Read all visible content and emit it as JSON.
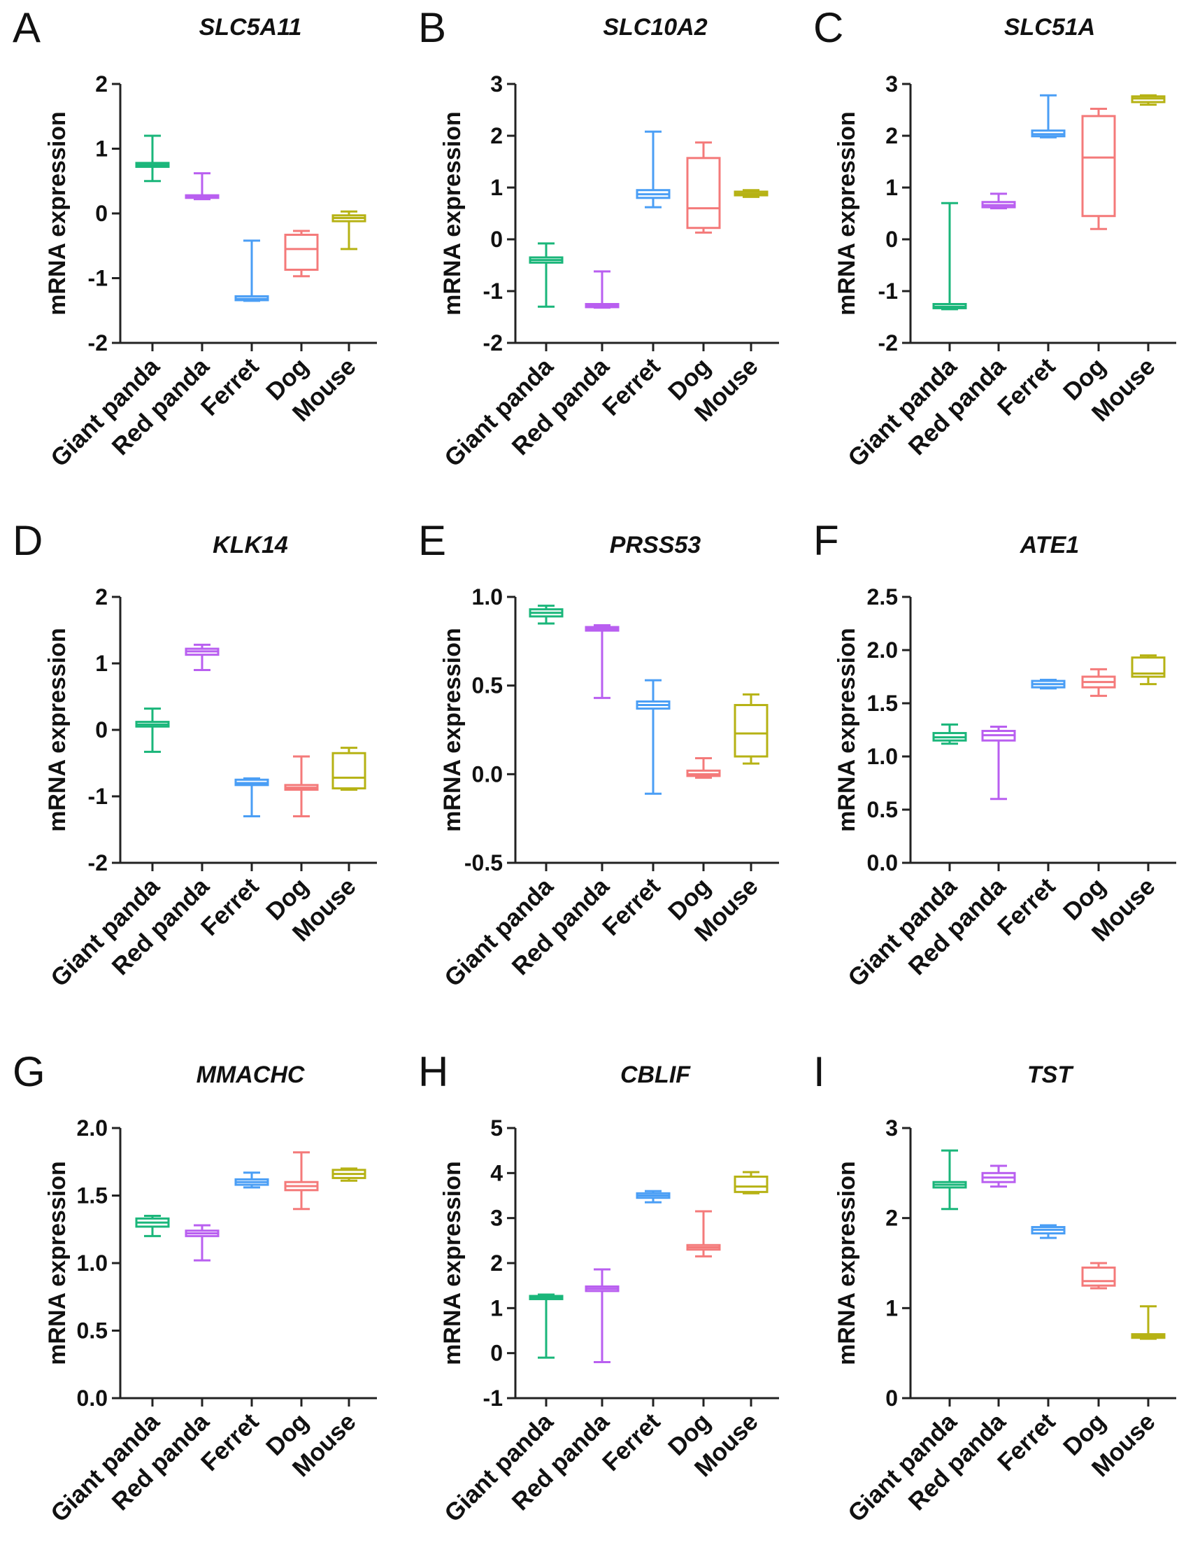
{
  "colors": {
    "Giant panda": "#1ab67a",
    "Red panda": "#b95ff0",
    "Ferret": "#4a9ef5",
    "Dog": "#f47a7a",
    "Mouse": "#b6b214"
  },
  "chart_data": [
    {
      "type": "box",
      "panel": "A",
      "title": "SLC5A11",
      "ylabel": "mRNA expression",
      "ylim": [
        -2,
        2
      ],
      "yticks": [
        "-2",
        "-1",
        "0",
        "1",
        "2"
      ],
      "categories": [
        "Giant panda",
        "Red panda",
        "Ferret",
        "Dog",
        "Mouse"
      ],
      "boxes": [
        {
          "min": 0.5,
          "q1": 0.72,
          "median": 0.75,
          "q3": 0.78,
          "max": 1.2
        },
        {
          "min": 0.22,
          "q1": 0.24,
          "median": 0.26,
          "q3": 0.28,
          "max": 0.62
        },
        {
          "min": -1.35,
          "q1": -1.34,
          "median": -1.32,
          "q3": -1.28,
          "max": -0.42
        },
        {
          "min": -0.97,
          "q1": -0.87,
          "median": -0.55,
          "q3": -0.33,
          "max": -0.27
        },
        {
          "min": -0.55,
          "q1": -0.12,
          "median": -0.07,
          "q3": -0.03,
          "max": 0.03
        }
      ]
    },
    {
      "type": "box",
      "panel": "B",
      "title": "SLC10A2",
      "ylabel": "mRNA expression",
      "ylim": [
        -2,
        3
      ],
      "yticks": [
        "-2",
        "-1",
        "0",
        "1",
        "2",
        "3"
      ],
      "categories": [
        "Giant panda",
        "Red panda",
        "Ferret",
        "Dog",
        "Mouse"
      ],
      "boxes": [
        {
          "min": -1.3,
          "q1": -0.45,
          "median": -0.4,
          "q3": -0.35,
          "max": -0.08
        },
        {
          "min": -1.32,
          "q1": -1.31,
          "median": -1.28,
          "q3": -1.25,
          "max": -0.62
        },
        {
          "min": 0.62,
          "q1": 0.8,
          "median": 0.87,
          "q3": 0.95,
          "max": 2.08
        },
        {
          "min": 0.13,
          "q1": 0.22,
          "median": 0.6,
          "q3": 1.57,
          "max": 1.87
        },
        {
          "min": 0.82,
          "q1": 0.85,
          "median": 0.88,
          "q3": 0.92,
          "max": 0.95
        }
      ]
    },
    {
      "type": "box",
      "panel": "C",
      "title": "SLC51A",
      "ylabel": "mRNA expression",
      "ylim": [
        -2,
        3
      ],
      "yticks": [
        "-2",
        "-1",
        "0",
        "1",
        "2",
        "3"
      ],
      "categories": [
        "Giant panda",
        "Red panda",
        "Ferret",
        "Dog",
        "Mouse"
      ],
      "boxes": [
        {
          "min": -1.35,
          "q1": -1.33,
          "median": -1.3,
          "q3": -1.25,
          "max": 0.7
        },
        {
          "min": 0.6,
          "q1": 0.62,
          "median": 0.66,
          "q3": 0.72,
          "max": 0.88
        },
        {
          "min": 1.97,
          "q1": 1.99,
          "median": 2.03,
          "q3": 2.1,
          "max": 2.78
        },
        {
          "min": 0.2,
          "q1": 0.45,
          "median": 1.58,
          "q3": 2.38,
          "max": 2.52
        },
        {
          "min": 2.6,
          "q1": 2.65,
          "median": 2.72,
          "q3": 2.76,
          "max": 2.78
        }
      ]
    },
    {
      "type": "box",
      "panel": "D",
      "title": "KLK14",
      "ylabel": "mRNA expression",
      "ylim": [
        -2,
        2
      ],
      "yticks": [
        "-2",
        "-1",
        "0",
        "1",
        "2"
      ],
      "categories": [
        "Giant panda",
        "Red panda",
        "Ferret",
        "Dog",
        "Mouse"
      ],
      "boxes": [
        {
          "min": -0.33,
          "q1": 0.05,
          "median": 0.08,
          "q3": 0.12,
          "max": 0.32
        },
        {
          "min": 0.9,
          "q1": 1.13,
          "median": 1.18,
          "q3": 1.22,
          "max": 1.28
        },
        {
          "min": -1.3,
          "q1": -0.83,
          "median": -0.8,
          "q3": -0.75,
          "max": -0.73
        },
        {
          "min": -1.3,
          "q1": -0.9,
          "median": -0.87,
          "q3": -0.83,
          "max": -0.4
        },
        {
          "min": -0.9,
          "q1": -0.88,
          "median": -0.72,
          "q3": -0.35,
          "max": -0.27
        }
      ]
    },
    {
      "type": "box",
      "panel": "E",
      "title": "PRSS53",
      "ylabel": "mRNA expression",
      "ylim": [
        -0.5,
        1.0
      ],
      "yticks": [
        "-0.5",
        "0.0",
        "0.5",
        "1.0"
      ],
      "categories": [
        "Giant panda",
        "Red panda",
        "Ferret",
        "Dog",
        "Mouse"
      ],
      "boxes": [
        {
          "min": 0.85,
          "q1": 0.89,
          "median": 0.91,
          "q3": 0.93,
          "max": 0.95
        },
        {
          "min": 0.43,
          "q1": 0.81,
          "median": 0.82,
          "q3": 0.83,
          "max": 0.84
        },
        {
          "min": -0.11,
          "q1": 0.37,
          "median": 0.39,
          "q3": 0.41,
          "max": 0.53
        },
        {
          "min": -0.02,
          "q1": -0.01,
          "median": 0.0,
          "q3": 0.02,
          "max": 0.09
        },
        {
          "min": 0.06,
          "q1": 0.1,
          "median": 0.23,
          "q3": 0.39,
          "max": 0.45
        }
      ]
    },
    {
      "type": "box",
      "panel": "F",
      "title": "ATE1",
      "ylabel": "mRNA expression",
      "ylim": [
        0.0,
        2.5
      ],
      "yticks": [
        "0.0",
        "0.5",
        "1.0",
        "1.5",
        "2.0",
        "2.5"
      ],
      "categories": [
        "Giant panda",
        "Red panda",
        "Ferret",
        "Dog",
        "Mouse"
      ],
      "boxes": [
        {
          "min": 1.12,
          "q1": 1.15,
          "median": 1.18,
          "q3": 1.22,
          "max": 1.3
        },
        {
          "min": 0.6,
          "q1": 1.15,
          "median": 1.2,
          "q3": 1.24,
          "max": 1.28
        },
        {
          "min": 1.64,
          "q1": 1.65,
          "median": 1.68,
          "q3": 1.71,
          "max": 1.72
        },
        {
          "min": 1.57,
          "q1": 1.65,
          "median": 1.7,
          "q3": 1.75,
          "max": 1.82
        },
        {
          "min": 1.68,
          "q1": 1.75,
          "median": 1.78,
          "q3": 1.93,
          "max": 1.95
        }
      ]
    },
    {
      "type": "box",
      "panel": "G",
      "title": "MMACHC",
      "ylabel": "mRNA expression",
      "ylim": [
        0.0,
        2.0
      ],
      "yticks": [
        "0.0",
        "0.5",
        "1.0",
        "1.5",
        "2.0"
      ],
      "categories": [
        "Giant panda",
        "Red panda",
        "Ferret",
        "Dog",
        "Mouse"
      ],
      "boxes": [
        {
          "min": 1.2,
          "q1": 1.27,
          "median": 1.3,
          "q3": 1.33,
          "max": 1.35
        },
        {
          "min": 1.02,
          "q1": 1.2,
          "median": 1.22,
          "q3": 1.24,
          "max": 1.28
        },
        {
          "min": 1.56,
          "q1": 1.58,
          "median": 1.6,
          "q3": 1.62,
          "max": 1.67
        },
        {
          "min": 1.4,
          "q1": 1.54,
          "median": 1.57,
          "q3": 1.6,
          "max": 1.82
        },
        {
          "min": 1.61,
          "q1": 1.63,
          "median": 1.66,
          "q3": 1.69,
          "max": 1.7
        }
      ]
    },
    {
      "type": "box",
      "panel": "H",
      "title": "CBLIF",
      "ylabel": "mRNA expression",
      "ylim": [
        -1,
        5
      ],
      "yticks": [
        "-1",
        "0",
        "1",
        "2",
        "3",
        "4",
        "5"
      ],
      "categories": [
        "Giant panda",
        "Red panda",
        "Ferret",
        "Dog",
        "Mouse"
      ],
      "boxes": [
        {
          "min": -0.1,
          "q1": 1.2,
          "median": 1.23,
          "q3": 1.27,
          "max": 1.3
        },
        {
          "min": -0.2,
          "q1": 1.38,
          "median": 1.43,
          "q3": 1.48,
          "max": 1.86
        },
        {
          "min": 3.35,
          "q1": 3.45,
          "median": 3.5,
          "q3": 3.55,
          "max": 3.6
        },
        {
          "min": 2.15,
          "q1": 2.3,
          "median": 2.35,
          "q3": 2.4,
          "max": 3.15
        },
        {
          "min": 3.55,
          "q1": 3.58,
          "median": 3.7,
          "q3": 3.92,
          "max": 4.02
        }
      ]
    },
    {
      "type": "box",
      "panel": "I",
      "title": "TST",
      "ylabel": "mRNA expression",
      "ylim": [
        0,
        3
      ],
      "yticks": [
        "0",
        "1",
        "2",
        "3"
      ],
      "categories": [
        "Giant panda",
        "Red panda",
        "Ferret",
        "Dog",
        "Mouse"
      ],
      "boxes": [
        {
          "min": 2.1,
          "q1": 2.34,
          "median": 2.37,
          "q3": 2.4,
          "max": 2.75
        },
        {
          "min": 2.35,
          "q1": 2.4,
          "median": 2.45,
          "q3": 2.5,
          "max": 2.58
        },
        {
          "min": 1.78,
          "q1": 1.83,
          "median": 1.87,
          "q3": 1.9,
          "max": 1.92
        },
        {
          "min": 1.22,
          "q1": 1.25,
          "median": 1.3,
          "q3": 1.45,
          "max": 1.5
        },
        {
          "min": 0.66,
          "q1": 0.67,
          "median": 0.69,
          "q3": 0.71,
          "max": 1.02
        }
      ]
    }
  ]
}
